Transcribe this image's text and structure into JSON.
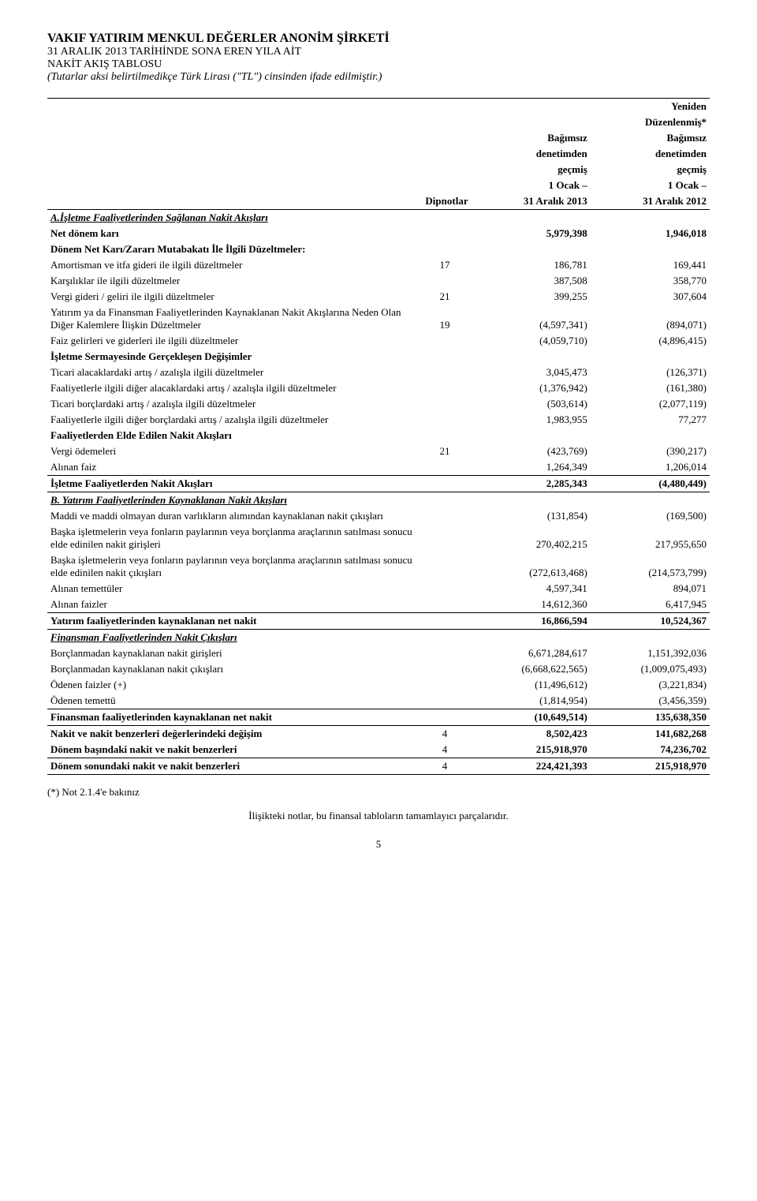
{
  "header": {
    "company": "VAKIF YATIRIM MENKUL DEĞERLER ANONİM ŞİRKETİ",
    "period": "31 ARALIK 2013 TARİHİNDE SONA EREN YILA AİT",
    "statement": "NAKİT AKIŞ TABLOSU",
    "note": "(Tutarlar aksi belirtilmedikçe Türk Lirası (\"TL\") cinsinden ifade edilmiştir.)"
  },
  "columns": {
    "notes": "Dipnotlar",
    "col1_l1": "Bağımsız",
    "col1_l2": "denetimden",
    "col1_l3": "geçmiş",
    "col1_l4": "1 Ocak –",
    "col1_l5": "31 Aralık 2013",
    "col2_l0": "Yeniden",
    "col2_l0b": "Düzenlenmiş*",
    "col2_l1": "Bağımsız",
    "col2_l2": "denetimden",
    "col2_l3": "geçmiş",
    "col2_l4": "1 Ocak –",
    "col2_l5": "31 Aralık 2012"
  },
  "rows": [
    {
      "label": "A.İşletme Faaliyetlerinden Sağlanan Nakit Akışları",
      "class": "bold italic underline"
    },
    {
      "label": "Net dönem karı",
      "class": "bold",
      "v1": "5,979,398",
      "v2": "1,946,018"
    },
    {
      "label": "Dönem Net Karı/Zararı Mutabakatı İle İlgili Düzeltmeler:",
      "class": "bold"
    },
    {
      "label": "Amortisman ve itfa gideri ile ilgili düzeltmeler",
      "note": "17",
      "v1": "186,781",
      "v2": "169,441"
    },
    {
      "label": "Karşılıklar ile ilgili düzeltmeler",
      "v1": "387,508",
      "v2": "358,770"
    },
    {
      "label": "Vergi gideri / geliri ile ilgili düzeltmeler",
      "note": "21",
      "v1": "399,255",
      "v2": "307,604"
    },
    {
      "label": "Yatırım ya da Finansman Faaliyetlerinden Kaynaklanan Nakit Akışlarına Neden Olan Diğer Kalemlere İlişkin Düzeltmeler",
      "note": "19",
      "v1": "(4,597,341)",
      "v2": "(894,071)"
    },
    {
      "label": "Faiz gelirleri ve giderleri ile ilgili düzeltmeler",
      "v1": "(4,059,710)",
      "v2": "(4,896,415)"
    },
    {
      "label": "İşletme Sermayesinde Gerçekleşen Değişimler",
      "class": "bold"
    },
    {
      "label": "Ticari alacaklardaki artış / azalışla ilgili düzeltmeler",
      "v1": "3,045,473",
      "v2": "(126,371)"
    },
    {
      "label": "Faaliyetlerle ilgili diğer alacaklardaki artış / azalışla ilgili düzeltmeler",
      "v1": "(1,376,942)",
      "v2": "(161,380)"
    },
    {
      "label": "Ticari borçlardaki artış / azalışla ilgili düzeltmeler",
      "v1": "(503,614)",
      "v2": "(2,077,119)"
    },
    {
      "label": "Faaliyetlerle ilgili diğer borçlardaki artış / azalışla ilgili düzeltmeler",
      "v1": "1,983,955",
      "v2": "77,277"
    },
    {
      "label": "Faaliyetlerden Elde Edilen Nakit Akışları",
      "class": "bold"
    },
    {
      "label": "Vergi ödemeleri",
      "note": "21",
      "v1": "(423,769)",
      "v2": "(390,217)"
    },
    {
      "label": "Alınan faiz",
      "v1": "1,264,349",
      "v2": "1,206,014",
      "bline": true
    },
    {
      "label": "İşletme Faaliyetlerden Nakit Akışları",
      "class": "bold",
      "v1": "2,285,343",
      "v2": "(4,480,449)",
      "bline": true
    },
    {
      "label": "B. Yatırım Faaliyetlerinden Kaynaklanan Nakit Akışları",
      "class": "bold italic underline"
    },
    {
      "label": "Maddi ve maddi olmayan duran varlıkların alımından kaynaklanan nakit çıkışları",
      "v1": "(131,854)",
      "v2": "(169,500)"
    },
    {
      "label": "Başka işletmelerin veya fonların paylarının veya borçlanma araçlarının satılması sonucu elde edinilen nakit girişleri",
      "v1": "270,402,215",
      "v2": "217,955,650"
    },
    {
      "label": "Başka işletmelerin veya fonların paylarının veya borçlanma araçlarının satılması sonucu elde edinilen nakit çıkışları",
      "v1": "(272,613,468)",
      "v2": "(214,573,799)"
    },
    {
      "label": "Alınan temettüler",
      "v1": "4,597,341",
      "v2": "894,071"
    },
    {
      "label": "Alınan faizler",
      "v1": "14,612,360",
      "v2": "6,417,945",
      "bline": true
    },
    {
      "label": "Yatırım faaliyetlerinden kaynaklanan net nakit",
      "class": "bold",
      "v1": "16,866,594",
      "v2": "10,524,367",
      "bline": true
    },
    {
      "label": "Finansman Faaliyetlerinden Nakit Çıkışları",
      "class": "bold italic underline"
    },
    {
      "label": "Borçlanmadan kaynaklanan nakit girişleri",
      "v1": "6,671,284,617",
      "v2": "1,151,392,036"
    },
    {
      "label": "Borçlanmadan kaynaklanan nakit çıkışları",
      "v1": "(6,668,622,565)",
      "v2": "(1,009,075,493)"
    },
    {
      "label": "Ödenen faizler (+)",
      "v1": "(11,496,612)",
      "v2": "(3,221,834)"
    },
    {
      "label": "Ödenen temettü",
      "v1": "(1,814,954)",
      "v2": "(3,456,359)",
      "bline": true
    },
    {
      "label": "Finansman faaliyetlerinden kaynaklanan net nakit",
      "class": "bold",
      "v1": "(10,649,514)",
      "v2": "135,638,350",
      "bline": true
    },
    {
      "label": "Nakit ve nakit benzerleri değerlerindeki değişim",
      "class": "bold",
      "note": "4",
      "v1": "8,502,423",
      "v2": "141,682,268"
    },
    {
      "label": "Dönem başındaki nakit ve nakit benzerleri",
      "class": "bold",
      "note": "4",
      "v1": "215,918,970",
      "v2": "74,236,702",
      "bline": true
    },
    {
      "label": "Dönem sonundaki nakit ve nakit benzerleri",
      "class": "bold",
      "note": "4",
      "v1": "224,421,393",
      "v2": "215,918,970",
      "bline": true
    }
  ],
  "footnote": "(*) Not 2.1.4'e bakınız",
  "footer": "İlişikteki notlar, bu finansal tabloların tamamlayıcı parçalarıdır.",
  "page": "5"
}
